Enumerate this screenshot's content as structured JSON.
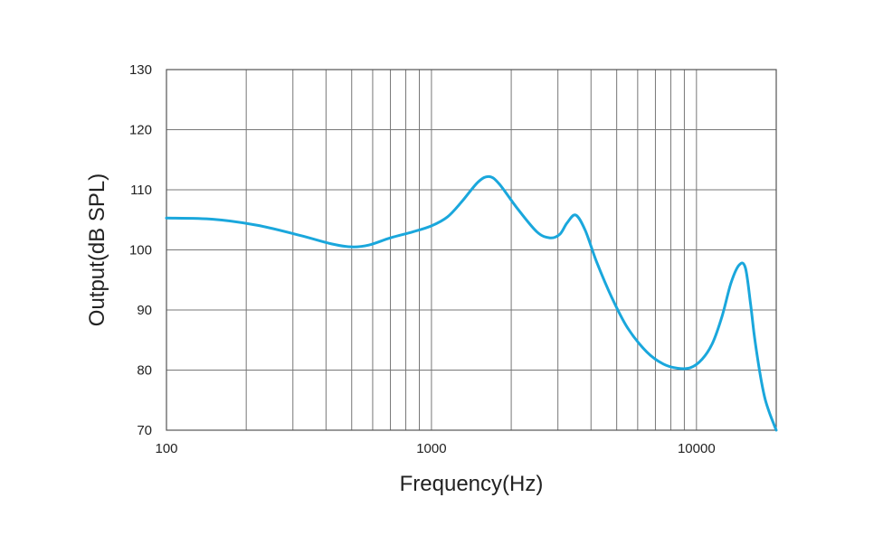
{
  "chart_data": {
    "type": "line",
    "title": "",
    "xlabel": "Frequency(Hz)",
    "ylabel": "Output(dB SPL)",
    "x_scale": "log",
    "xlim": [
      100,
      20000
    ],
    "ylim": [
      70,
      130
    ],
    "grid": true,
    "legend": "none",
    "x_tick_labels": [
      "100",
      "1000",
      "10000"
    ],
    "x_ticks": [
      100,
      1000,
      10000
    ],
    "y_tick_labels": [
      "130",
      "120",
      "110",
      "100",
      "90",
      "80",
      "70"
    ],
    "y_ticks": [
      130,
      120,
      110,
      100,
      90,
      80,
      70
    ],
    "series": [
      {
        "color": "#1aa7dc",
        "x": [
          100,
          150,
          220,
          320,
          420,
          500,
          580,
          700,
          850,
          1000,
          1150,
          1300,
          1500,
          1650,
          1800,
          2100,
          2500,
          2800,
          3050,
          3250,
          3500,
          3800,
          4200,
          4800,
          5500,
          6500,
          7500,
          8500,
          9500,
          10500,
          11500,
          12500,
          13500,
          14500,
          15300,
          16000,
          16500,
          17000,
          17600,
          18200,
          19000,
          20000
        ],
        "y": [
          105.3,
          105.1,
          104.1,
          102.4,
          101.0,
          100.5,
          100.8,
          102.0,
          103.0,
          104.0,
          105.5,
          108.0,
          111.3,
          112.2,
          111.0,
          107.0,
          103.0,
          102.0,
          102.6,
          104.5,
          105.8,
          103.3,
          98.0,
          92.0,
          87.0,
          83.0,
          81.0,
          80.3,
          80.4,
          81.8,
          84.5,
          89.0,
          94.5,
          97.5,
          97.0,
          91.0,
          86.0,
          82.0,
          78.0,
          75.0,
          72.5,
          70.0
        ]
      }
    ]
  }
}
